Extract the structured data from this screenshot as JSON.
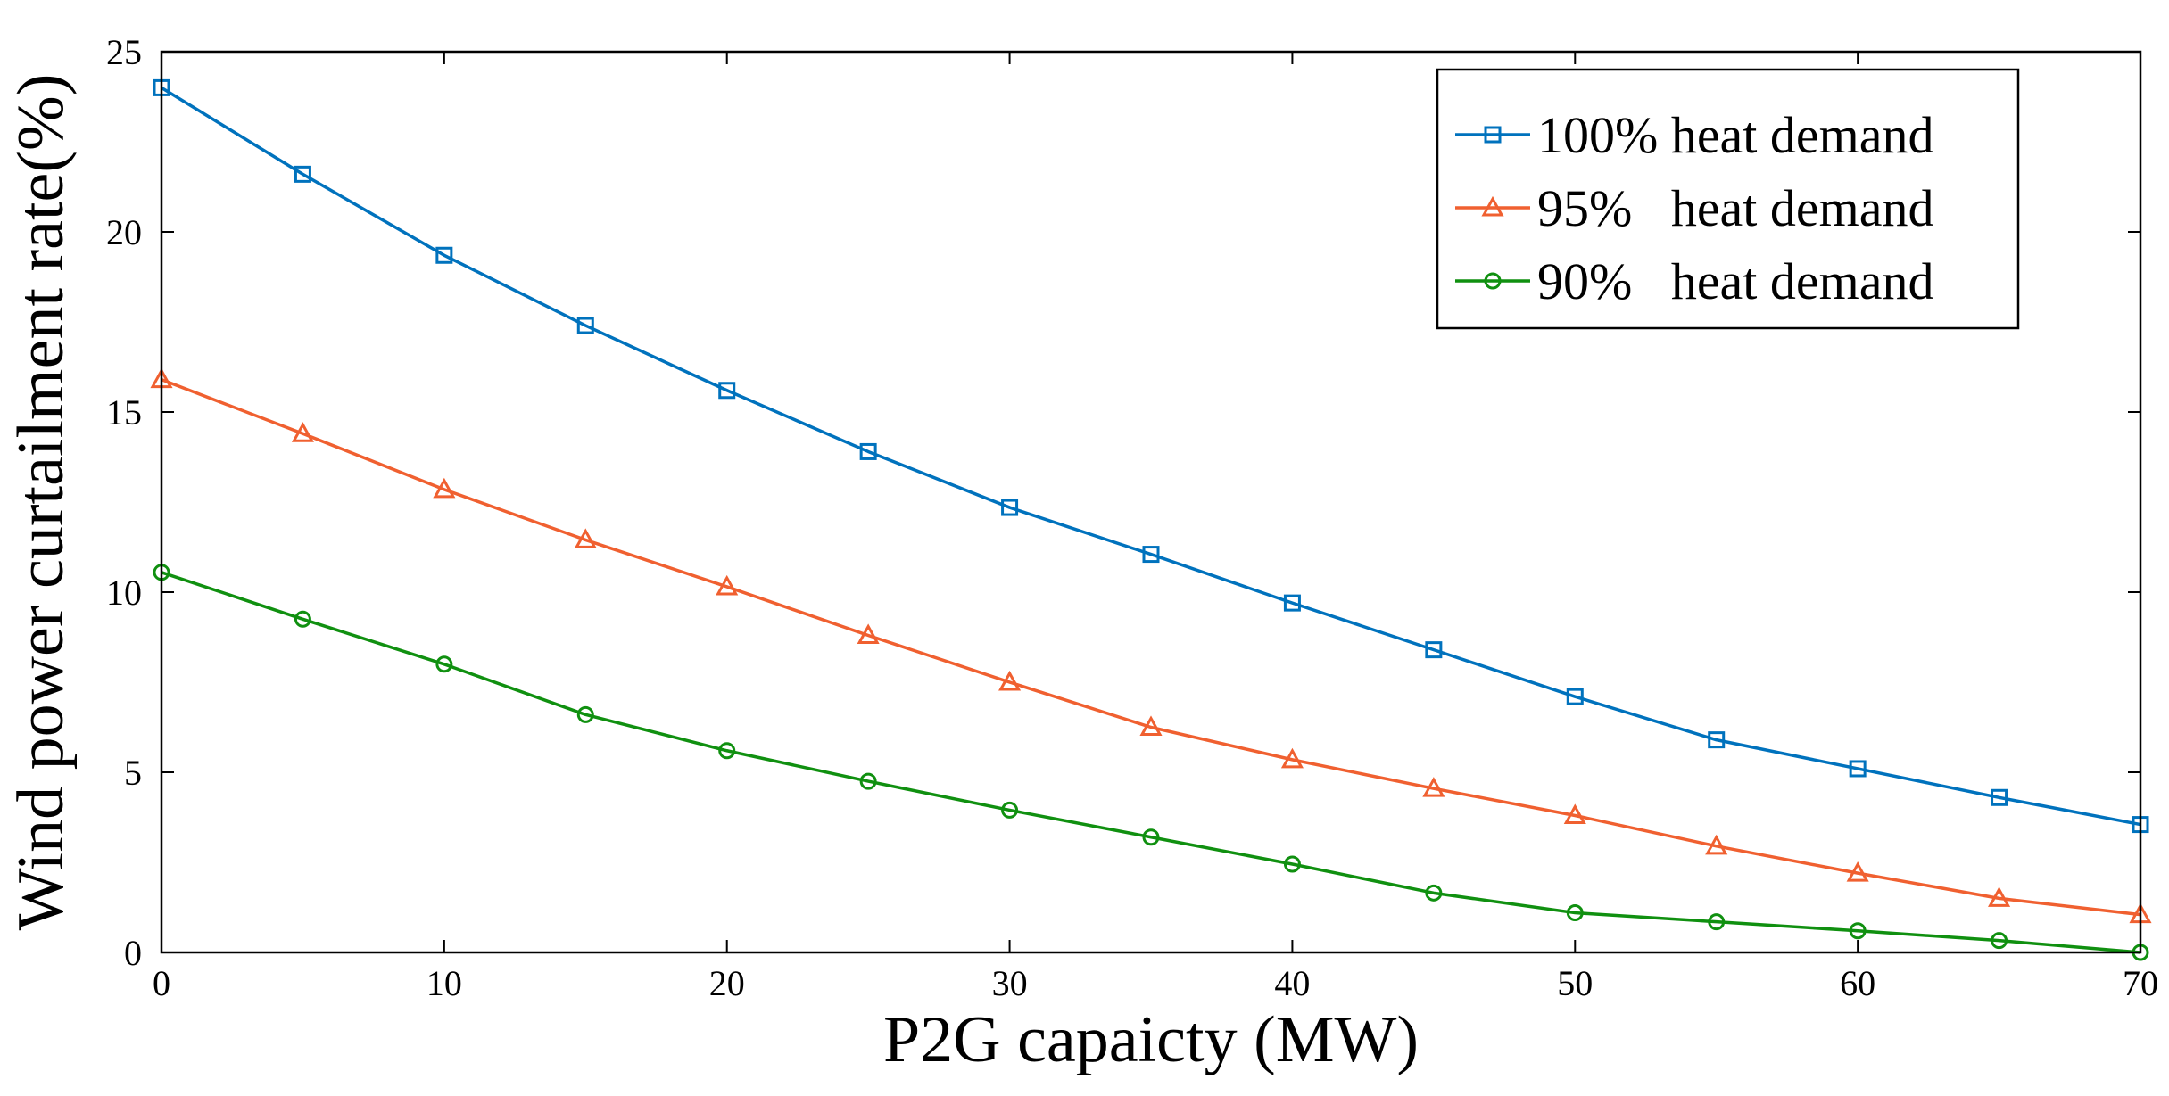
{
  "chart_data": {
    "type": "line",
    "xlabel": "P2G capaicty (MW)",
    "ylabel": "Wind power curtailment rate(%)",
    "xlim": [
      0,
      70
    ],
    "ylim": [
      0,
      25
    ],
    "xticks": [
      0,
      10,
      20,
      30,
      40,
      50,
      60,
      70
    ],
    "yticks": [
      0,
      5,
      10,
      15,
      20,
      25
    ],
    "grid": false,
    "legend_position": "top-right",
    "x": [
      0,
      5,
      10,
      15,
      20,
      25,
      30,
      35,
      40,
      45,
      50,
      55,
      60,
      65,
      70
    ],
    "series": [
      {
        "name": "100% heat demand",
        "marker": "square",
        "color": "#0072BD",
        "values": [
          24.0,
          21.6,
          19.35,
          17.4,
          15.6,
          13.9,
          12.35,
          11.05,
          9.7,
          8.4,
          7.1,
          5.9,
          5.1,
          4.3,
          3.55
        ]
      },
      {
        "name": "95%   heat demand",
        "marker": "triangle",
        "color": "#F06030",
        "values": [
          15.9,
          14.4,
          12.85,
          11.45,
          10.15,
          8.8,
          7.5,
          6.25,
          5.35,
          4.55,
          3.8,
          2.95,
          2.2,
          1.5,
          1.05
        ]
      },
      {
        "name": "90%   heat demand",
        "marker": "circle",
        "color": "#109010",
        "values": [
          10.55,
          9.25,
          8.0,
          6.6,
          5.6,
          4.75,
          3.95,
          3.2,
          2.45,
          1.65,
          1.1,
          0.85,
          0.6,
          0.33,
          0.0
        ]
      }
    ]
  }
}
